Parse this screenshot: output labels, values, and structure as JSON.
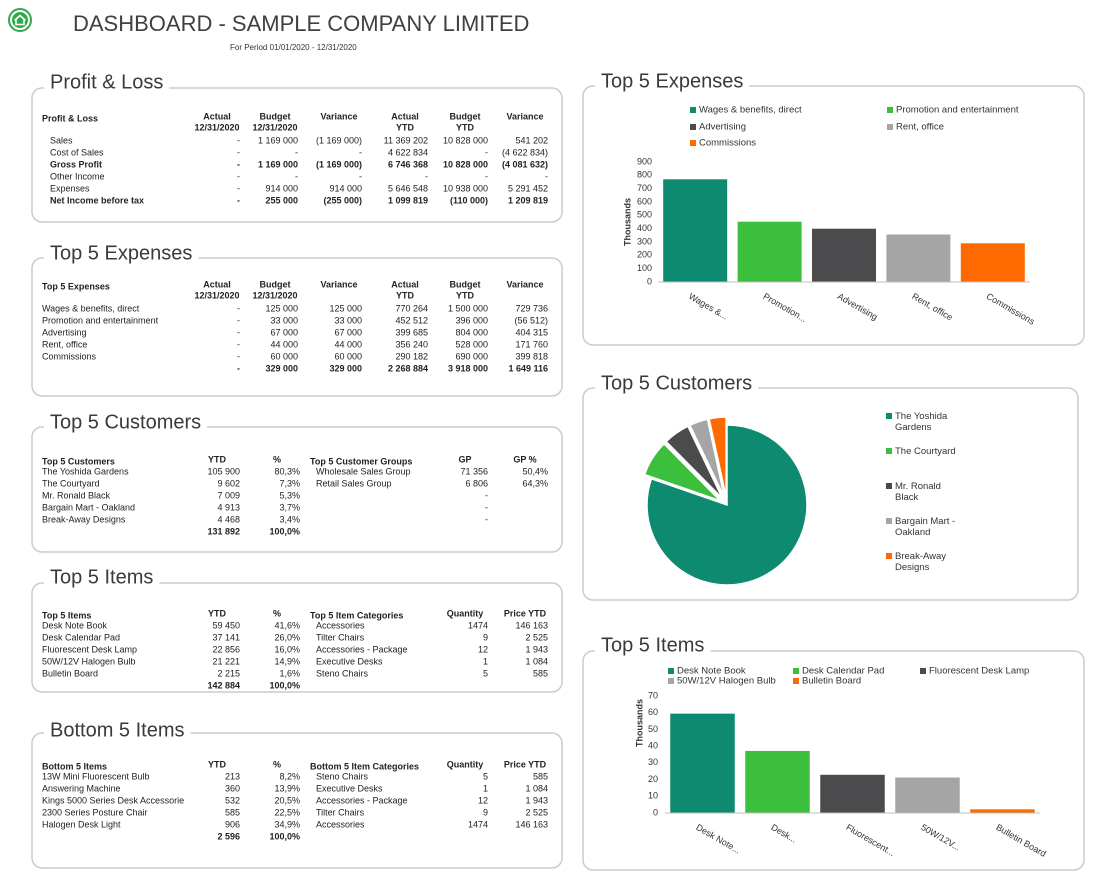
{
  "header": {
    "title": "DASHBOARD - SAMPLE COMPANY LIMITED",
    "subtitle": "For Period 01/01/2020 - 12/31/2020"
  },
  "tables": [
    {
      "title": "Profit & Loss",
      "blocks": [
        {
          "headers": [
            "Profit & Loss",
            [
              "Actual",
              "12/31/2020"
            ],
            [
              "Budget",
              "12/31/2020"
            ],
            "Variance",
            [
              "Actual",
              "YTD"
            ],
            [
              "Budget",
              "YTD"
            ],
            "Variance"
          ],
          "rows": [
            [
              "Sales",
              "-",
              "1 169 000",
              "(1 169 000)",
              "11 369 202",
              "10 828 000",
              "541 202"
            ],
            [
              "Cost of Sales",
              "-",
              "-",
              "-",
              "4 622 834",
              "-",
              "(4 622 834)"
            ],
            [
              "Gross Profit",
              "-",
              "1 169 000",
              "(1 169 000)",
              "6 746 368",
              "10 828 000",
              "(4 081 632)"
            ],
            [
              "Other Income",
              "-",
              "-",
              "-",
              "-",
              "-",
              "-"
            ],
            [
              "Expenses",
              "-",
              "914 000",
              "914 000",
              "5 646 548",
              "10 938 000",
              "5 291 452"
            ],
            [
              "Net Income before tax",
              "-",
              "255 000",
              "(255 000)",
              "1 099 819",
              "(110 000)",
              "1 209 819"
            ]
          ],
          "bold_rows": [
            2,
            5
          ],
          "indent_rows": [
            0,
            1,
            3,
            4
          ]
        }
      ]
    },
    {
      "title": "Top 5 Expenses",
      "blocks": [
        {
          "headers": [
            "Top 5 Expenses",
            [
              "Actual",
              "12/31/2020"
            ],
            [
              "Budget",
              "12/31/2020"
            ],
            "Variance",
            [
              "Actual",
              "YTD"
            ],
            [
              "Budget",
              "YTD"
            ],
            "Variance"
          ],
          "rows": [
            [
              "Wages & benefits, direct",
              "-",
              "125 000",
              "125 000",
              "770 264",
              "1 500 000",
              "729 736"
            ],
            [
              "Promotion and entertainment",
              "-",
              "33 000",
              "33 000",
              "452 512",
              "396 000",
              "(56 512)"
            ],
            [
              "Advertising",
              "-",
              "67 000",
              "67 000",
              "399 685",
              "804 000",
              "404 315"
            ],
            [
              "Rent, office",
              "-",
              "44 000",
              "44 000",
              "356 240",
              "528 000",
              "171 760"
            ],
            [
              "Commissions",
              "-",
              "60 000",
              "60 000",
              "290 182",
              "690 000",
              "399 818"
            ]
          ],
          "total": [
            "-",
            "329 000",
            "329 000",
            "2 268 884",
            "3 918 000",
            "1 649 116"
          ]
        }
      ]
    },
    {
      "title": "Top 5 Customers",
      "blocks": [
        {
          "headers": [
            "Top 5 Customers",
            "YTD",
            "%"
          ],
          "rows": [
            [
              "The Yoshida Gardens",
              "105 900",
              "80,3%"
            ],
            [
              "The Courtyard",
              "9 602",
              "7,3%"
            ],
            [
              "Mr. Ronald Black",
              "7 009",
              "5,3%"
            ],
            [
              "Bargain Mart - Oakland",
              "4 913",
              "3,7%"
            ],
            [
              "Break-Away Designs",
              "4 468",
              "3,4%"
            ]
          ],
          "total": [
            "131 892",
            "100,0%"
          ]
        },
        {
          "headers": [
            "Top 5 Customer Groups",
            "GP",
            "GP %"
          ],
          "rows": [
            [
              "Wholesale Sales Group",
              "71 356",
              "50,4%"
            ],
            [
              "Retail Sales Group",
              "6 806",
              "64,3%"
            ],
            [
              null,
              "-",
              null
            ],
            [
              null,
              "-",
              null
            ],
            [
              null,
              "-",
              null
            ]
          ]
        }
      ]
    },
    {
      "title": "Top 5 Items",
      "blocks": [
        {
          "headers": [
            "Top 5 Items",
            "YTD",
            "%"
          ],
          "rows": [
            [
              "Desk Note Book",
              "59 450",
              "41,6%"
            ],
            [
              "Desk Calendar Pad",
              "37 141",
              "26,0%"
            ],
            [
              "Fluorescent Desk Lamp",
              "22 856",
              "16,0%"
            ],
            [
              "50W/12V Halogen Bulb",
              "21 221",
              "14,9%"
            ],
            [
              "Bulletin Board",
              "2 215",
              "1,6%"
            ]
          ],
          "total": [
            "142 884",
            "100,0%"
          ]
        },
        {
          "headers": [
            "Top 5 Item Categories",
            "Quantity",
            "Price YTD"
          ],
          "rows": [
            [
              "Accessories",
              "1474",
              "146 163"
            ],
            [
              "Tilter Chairs",
              "9",
              "2 525"
            ],
            [
              "Accessories - Package",
              "12",
              "1 943"
            ],
            [
              "Executive Desks",
              "1",
              "1 084"
            ],
            [
              "Steno Chairs",
              "5",
              "585"
            ]
          ]
        }
      ]
    },
    {
      "title": "Bottom 5 Items",
      "blocks": [
        {
          "headers": [
            "Bottom 5 Items",
            "YTD",
            "%"
          ],
          "rows": [
            [
              "13W Mini Fluorescent Bulb",
              "213",
              "8,2%"
            ],
            [
              "Answering Machine",
              "360",
              "13,9%"
            ],
            [
              "Kings 5000 Series Desk Accessorie",
              "532",
              "20,5%"
            ],
            [
              "2300 Series Posture Chair",
              "585",
              "22,5%"
            ],
            [
              "Halogen Desk Light",
              "906",
              "34,9%"
            ]
          ],
          "total": [
            "2 596",
            "100,0%"
          ]
        },
        {
          "headers": [
            "Bottom 5 Item Categories",
            "Quantity",
            "Price YTD"
          ],
          "rows": [
            [
              "Steno Chairs",
              "5",
              "585"
            ],
            [
              "Executive Desks",
              "1",
              "1 084"
            ],
            [
              "Accessories - Package",
              "12",
              "1 943"
            ],
            [
              "Tilter Chairs",
              "9",
              "2 525"
            ],
            [
              "Accessories",
              "1474",
              "146 163"
            ]
          ]
        }
      ]
    }
  ],
  "chart_data": [
    {
      "type": "bar",
      "title": "Top 5 Expenses",
      "y_label": "Thousands",
      "categories": [
        "Wages &...",
        "Promotion...",
        "Advertising",
        "Rent, office",
        "Commissions"
      ],
      "legend": [
        "Wages & benefits, direct",
        "Promotion and entertainment",
        "Advertising",
        "Rent, office",
        "Commissions"
      ],
      "values": [
        770.264,
        452.512,
        399.685,
        356.24,
        290.182
      ],
      "colors": [
        "#0d8a6f",
        "#3cbf3c",
        "#4b4b4d",
        "#a5a5a5",
        "#ff6a00"
      ],
      "ylim": [
        0,
        900
      ],
      "yticks": [
        0,
        100,
        200,
        300,
        400,
        500,
        600,
        700,
        800,
        900
      ],
      "grid": false
    },
    {
      "type": "pie",
      "title": "Top 5 Customers",
      "categories": [
        "The Yoshida Gardens",
        "The Courtyard",
        "Mr. Ronald Black",
        "Bargain Mart - Oakland",
        "Break-Away Designs"
      ],
      "values": [
        80.3,
        7.3,
        5.3,
        3.7,
        3.4
      ],
      "colors": [
        "#0d8a6f",
        "#3cbf3c",
        "#4b4b4d",
        "#a5a5a5",
        "#ff6a00"
      ]
    },
    {
      "type": "bar",
      "title": "Top 5 Items",
      "y_label": "Thousands",
      "categories": [
        "Desk Note...",
        "Desk...",
        "Fluorescent...",
        "50W/12V...",
        "Bulletin Board"
      ],
      "legend": [
        "Desk Note Book",
        "Desk Calendar Pad",
        "Fluorescent Desk Lamp",
        "50W/12V Halogen Bulb",
        "Bulletin Board"
      ],
      "values": [
        59.45,
        37.141,
        22.856,
        21.221,
        2.215
      ],
      "colors": [
        "#0d8a6f",
        "#3cbf3c",
        "#4b4b4d",
        "#a5a5a5",
        "#ff6a00"
      ],
      "ylim": [
        0,
        70
      ],
      "yticks": [
        0,
        10,
        20,
        30,
        40,
        50,
        60,
        70
      ],
      "grid": false
    }
  ]
}
